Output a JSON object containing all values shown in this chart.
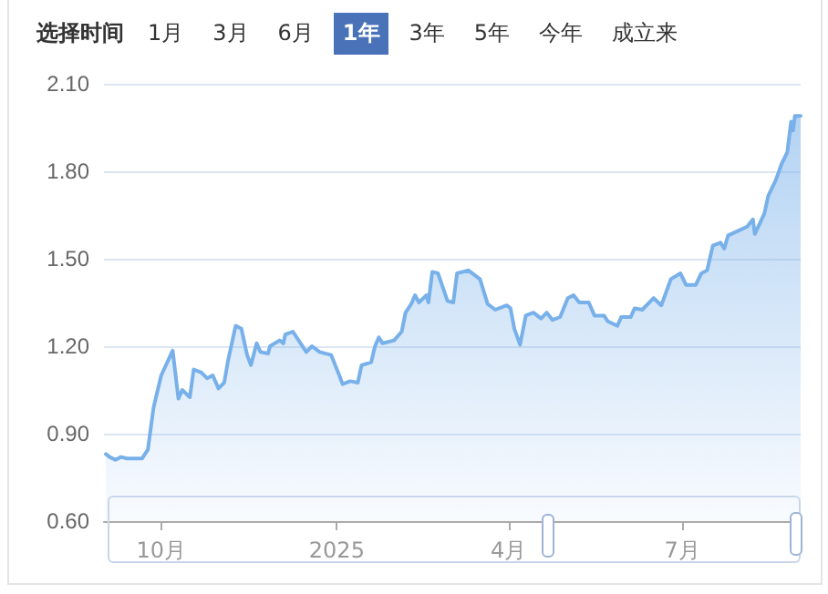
{
  "chart_data": {
    "type": "area",
    "annotations": [
      "选择时间",
      "1月",
      "3月",
      "6月",
      "1年",
      "3年",
      "5年",
      "今年",
      "成立来"
    ],
    "x": [
      "2024-09-02",
      "2024-09-04",
      "2024-09-07",
      "2024-09-10",
      "2024-09-13",
      "2024-09-21",
      "2024-09-24",
      "2024-09-27",
      "2024-10-01",
      "2024-10-07",
      "2024-10-10",
      "2024-10-12",
      "2024-10-16",
      "2024-10-18",
      "2024-10-22",
      "2024-10-25",
      "2024-10-28",
      "2024-10-31",
      "2024-11-03",
      "2024-11-05",
      "2024-11-09",
      "2024-11-12",
      "2024-11-15",
      "2024-11-17",
      "2024-11-20",
      "2024-11-22",
      "2024-11-26",
      "2024-11-27",
      "2024-12-02",
      "2024-12-04",
      "2024-12-05",
      "2024-12-09",
      "2024-12-12",
      "2024-12-16",
      "2024-12-19",
      "2024-12-23",
      "2024-12-29",
      "2025-01-02",
      "2025-01-04",
      "2025-01-08",
      "2025-01-12",
      "2025-01-14",
      "2025-01-19",
      "2025-01-21",
      "2025-01-23",
      "2025-01-25",
      "2025-01-31",
      "2025-02-04",
      "2025-02-06",
      "2025-02-09",
      "2025-02-11",
      "2025-02-13",
      "2025-02-17",
      "2025-02-18",
      "2025-02-20",
      "2025-02-23",
      "2025-02-28",
      "2025-03-03",
      "2025-03-05",
      "2025-03-11",
      "2025-03-17",
      "2025-03-21",
      "2025-03-25",
      "2025-03-31",
      "2025-04-02",
      "2025-04-04",
      "2025-04-07",
      "2025-04-10",
      "2025-04-14",
      "2025-04-18",
      "2025-04-21",
      "2025-04-24",
      "2025-04-28",
      "2025-05-02",
      "2025-05-05",
      "2025-05-08",
      "2025-05-13",
      "2025-05-16",
      "2025-05-21",
      "2025-05-23",
      "2025-05-28",
      "2025-05-30",
      "2025-06-04",
      "2025-06-06",
      "2025-06-10",
      "2025-06-16",
      "2025-06-20",
      "2025-06-25",
      "2025-06-30",
      "2025-07-03",
      "2025-07-08",
      "2025-07-11",
      "2025-07-14",
      "2025-07-17",
      "2025-07-21",
      "2025-07-23",
      "2025-07-25",
      "2025-07-30",
      "2025-08-04",
      "2025-08-07",
      "2025-08-08",
      "2025-08-13",
      "2025-08-15",
      "2025-08-19",
      "2025-08-22",
      "2025-08-25",
      "2025-08-27",
      "2025-08-28",
      "2025-08-29",
      "2025-09-01"
    ],
    "values": [
      0.83,
      0.82,
      0.81,
      0.82,
      0.815,
      0.815,
      0.845,
      0.99,
      1.1,
      1.185,
      1.02,
      1.05,
      1.025,
      1.12,
      1.11,
      1.09,
      1.1,
      1.055,
      1.075,
      1.15,
      1.27,
      1.26,
      1.17,
      1.135,
      1.21,
      1.18,
      1.175,
      1.2,
      1.22,
      1.21,
      1.24,
      1.25,
      1.22,
      1.18,
      1.2,
      1.18,
      1.17,
      1.105,
      1.07,
      1.08,
      1.075,
      1.135,
      1.145,
      1.2,
      1.23,
      1.21,
      1.22,
      1.25,
      1.315,
      1.345,
      1.375,
      1.35,
      1.375,
      1.35,
      1.455,
      1.45,
      1.355,
      1.35,
      1.45,
      1.46,
      1.43,
      1.345,
      1.325,
      1.34,
      1.33,
      1.26,
      1.205,
      1.305,
      1.315,
      1.295,
      1.315,
      1.29,
      1.3,
      1.365,
      1.375,
      1.35,
      1.35,
      1.305,
      1.305,
      1.285,
      1.27,
      1.3,
      1.3,
      1.33,
      1.325,
      1.365,
      1.34,
      1.43,
      1.45,
      1.41,
      1.41,
      1.45,
      1.46,
      1.545,
      1.555,
      1.535,
      1.58,
      1.595,
      1.61,
      1.635,
      1.585,
      1.655,
      1.715,
      1.77,
      1.825,
      1.865,
      1.97,
      1.94,
      1.99,
      1.99
    ],
    "color": "#78b0ea",
    "xlim": [
      "2024-09-01",
      "2025-09-01"
    ],
    "xticks": [
      {
        "value": "2024-10-01",
        "label": "10月"
      },
      {
        "value": "2025-01-01",
        "label": "2025"
      },
      {
        "value": "2025-04-01",
        "label": "4月"
      },
      {
        "value": "2025-07-01",
        "label": "7月"
      }
    ],
    "ylim": [
      0.6,
      2.1
    ],
    "yticks": [
      {
        "value": 0.6,
        "label": "0.60"
      },
      {
        "value": 0.9,
        "label": "0.90"
      },
      {
        "value": 1.2,
        "label": "1.20"
      },
      {
        "value": 1.5,
        "label": "1.50"
      },
      {
        "value": 1.8,
        "label": "1.80"
      },
      {
        "value": 2.1,
        "label": "2.10"
      }
    ],
    "grid": "y",
    "marker": "none",
    "line_style": "solid"
  }
}
